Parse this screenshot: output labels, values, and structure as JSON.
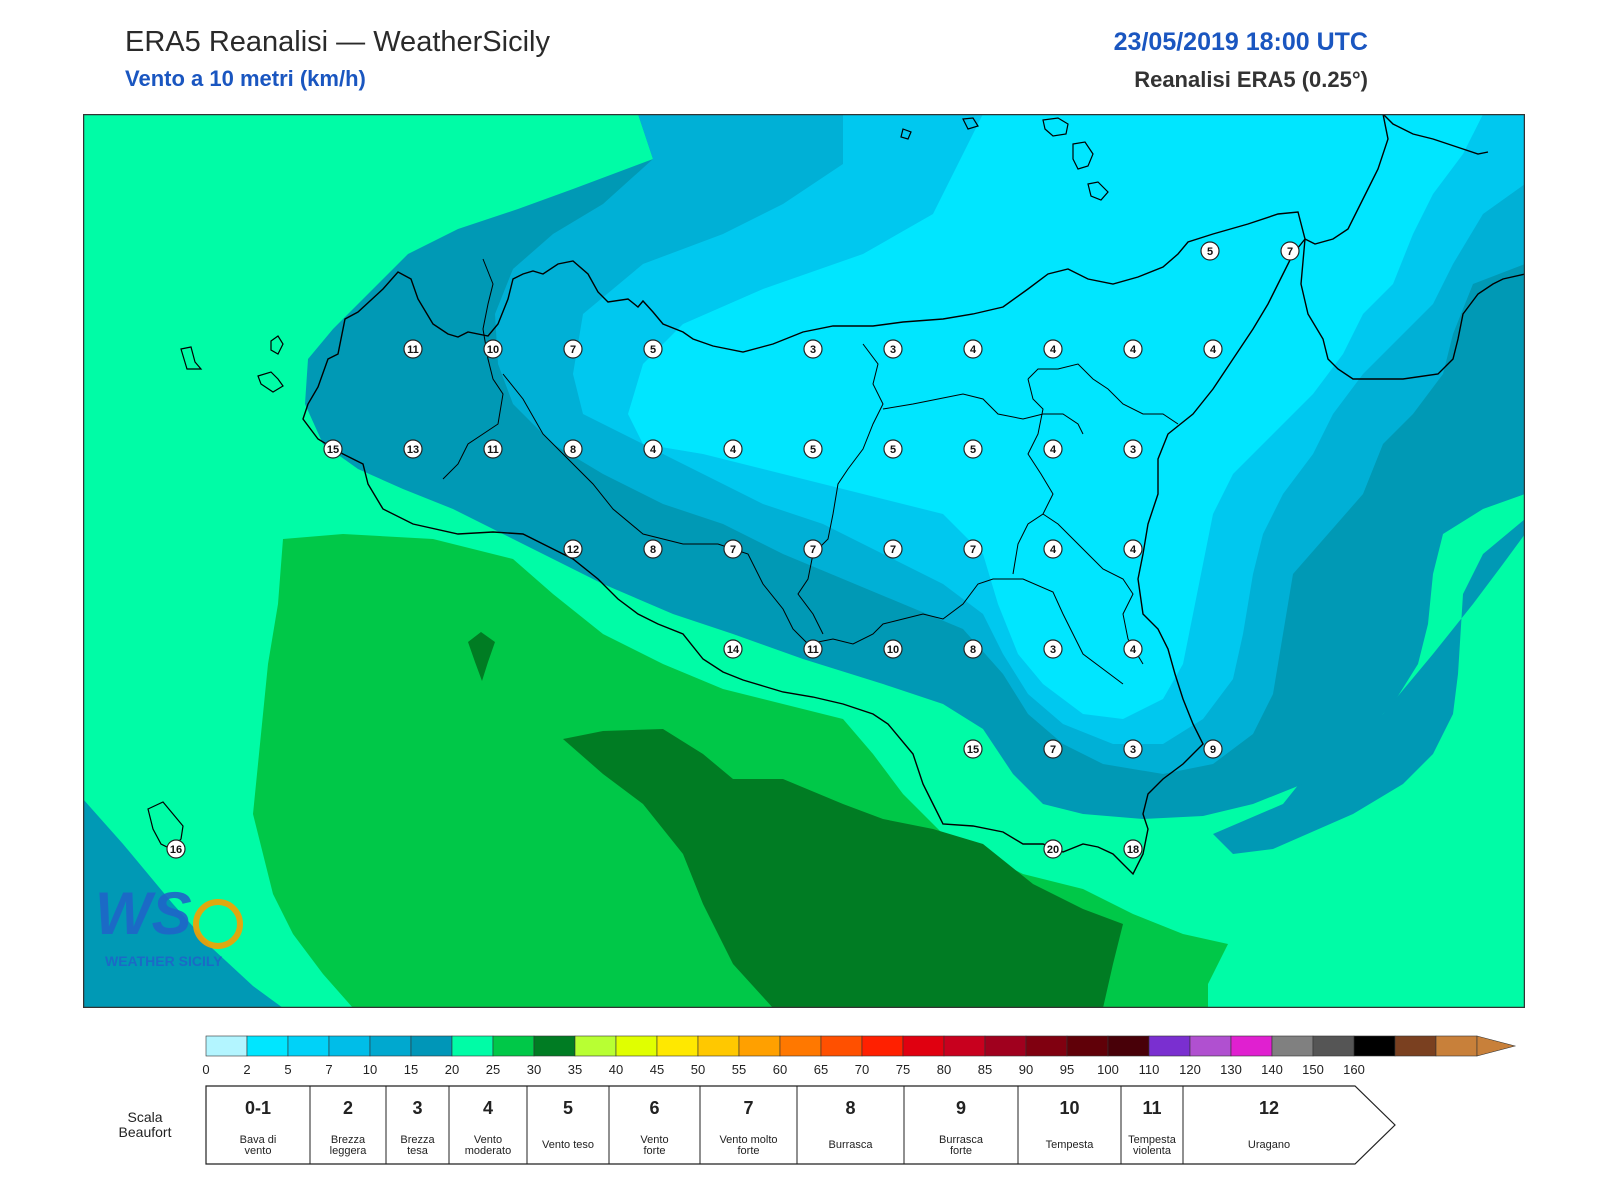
{
  "header": {
    "title": "ERA5 Reanalisi — WeatherSicily",
    "subtitle": "Vento a 10 metri (km/h)",
    "datetime": "23/05/2019 18:00 UTC",
    "source": "Reanalisi ERA5 (0.25°)"
  },
  "logo": {
    "text": "WEATHER SICILY",
    "letters": "WS"
  },
  "map": {
    "fill_colors": {
      "land_sea_15_20": "#00fca6",
      "band_10_15": "#0099b5",
      "band_7_10": "#00b0d6",
      "band_5_7": "#00c8ef",
      "band_2_5": "#00e6ff",
      "band_20_25": "#00c848",
      "band_25_30": "#007c23",
      "coast": "#000000"
    },
    "wind_values": [
      {
        "id": "v1",
        "value": "5"
      },
      {
        "id": "v2",
        "value": "7"
      },
      {
        "id": "v3",
        "value": "11"
      },
      {
        "id": "v4",
        "value": "10"
      },
      {
        "id": "v5",
        "value": "7"
      },
      {
        "id": "v6",
        "value": "5"
      },
      {
        "id": "v7",
        "value": "3"
      },
      {
        "id": "v8",
        "value": "3"
      },
      {
        "id": "v9",
        "value": "4"
      },
      {
        "id": "v10",
        "value": "4"
      },
      {
        "id": "v11",
        "value": "4"
      },
      {
        "id": "v12",
        "value": "4"
      },
      {
        "id": "v13",
        "value": "15"
      },
      {
        "id": "v14",
        "value": "13"
      },
      {
        "id": "v15",
        "value": "11"
      },
      {
        "id": "v16",
        "value": "8"
      },
      {
        "id": "v17",
        "value": "4"
      },
      {
        "id": "v18",
        "value": "4"
      },
      {
        "id": "v19",
        "value": "5"
      },
      {
        "id": "v20",
        "value": "5"
      },
      {
        "id": "v21",
        "value": "5"
      },
      {
        "id": "v22",
        "value": "4"
      },
      {
        "id": "v23",
        "value": "3"
      },
      {
        "id": "v24",
        "value": "12"
      },
      {
        "id": "v25",
        "value": "8"
      },
      {
        "id": "v26",
        "value": "7"
      },
      {
        "id": "v27",
        "value": "7"
      },
      {
        "id": "v28",
        "value": "7"
      },
      {
        "id": "v29",
        "value": "7"
      },
      {
        "id": "v30",
        "value": "4"
      },
      {
        "id": "v31",
        "value": "4"
      },
      {
        "id": "v32",
        "value": "14"
      },
      {
        "id": "v33",
        "value": "11"
      },
      {
        "id": "v34",
        "value": "10"
      },
      {
        "id": "v35",
        "value": "8"
      },
      {
        "id": "v36",
        "value": "3"
      },
      {
        "id": "v37",
        "value": "4"
      },
      {
        "id": "v38",
        "value": "15"
      },
      {
        "id": "v39",
        "value": "7"
      },
      {
        "id": "v40",
        "value": "3"
      },
      {
        "id": "v41",
        "value": "9"
      },
      {
        "id": "v42",
        "value": "16"
      },
      {
        "id": "v43",
        "value": "20"
      },
      {
        "id": "v44",
        "value": "18"
      }
    ]
  },
  "colorbar": {
    "colors": [
      "#b3f5ff",
      "#00e6ff",
      "#00d2f8",
      "#00bde8",
      "#00a8cf",
      "#0096b8",
      "#00fca6",
      "#00c848",
      "#007c23",
      "#b8ff33",
      "#e0ff00",
      "#ffe800",
      "#ffc800",
      "#ffa000",
      "#ff7800",
      "#ff5000",
      "#ff2000",
      "#e00010",
      "#c8001e",
      "#a0001e",
      "#800010",
      "#600008",
      "#480008",
      "#7a2fd0",
      "#b050d0",
      "#e020d0",
      "#808080",
      "#555555",
      "#000000",
      "#7a4020",
      "#c8803a"
    ],
    "ticks": [
      "0",
      "2",
      "5",
      "7",
      "10",
      "15",
      "20",
      "25",
      "30",
      "35",
      "40",
      "45",
      "50",
      "55",
      "60",
      "65",
      "70",
      "75",
      "80",
      "85",
      "90",
      "95",
      "100",
      "110",
      "120",
      "130",
      "140",
      "150",
      "160"
    ]
  },
  "beaufort": {
    "title_line1": "Scala",
    "title_line2": "Beaufort",
    "classes": [
      {
        "num": "0-1",
        "l1": "Bava di",
        "l2": "vento"
      },
      {
        "num": "2",
        "l1": "Brezza",
        "l2": "leggera"
      },
      {
        "num": "3",
        "l1": "Brezza",
        "l2": "tesa"
      },
      {
        "num": "4",
        "l1": "Vento",
        "l2": "moderato"
      },
      {
        "num": "5",
        "l1": "Vento teso",
        "l2": ""
      },
      {
        "num": "6",
        "l1": "Vento",
        "l2": "forte"
      },
      {
        "num": "7",
        "l1": "Vento molto",
        "l2": "forte"
      },
      {
        "num": "8",
        "l1": "Burrasca",
        "l2": ""
      },
      {
        "num": "9",
        "l1": "Burrasca",
        "l2": "forte"
      },
      {
        "num": "10",
        "l1": "Tempesta",
        "l2": ""
      },
      {
        "num": "11",
        "l1": "Tempesta",
        "l2": "violenta"
      },
      {
        "num": "12",
        "l1": "Uragano",
        "l2": ""
      }
    ]
  }
}
